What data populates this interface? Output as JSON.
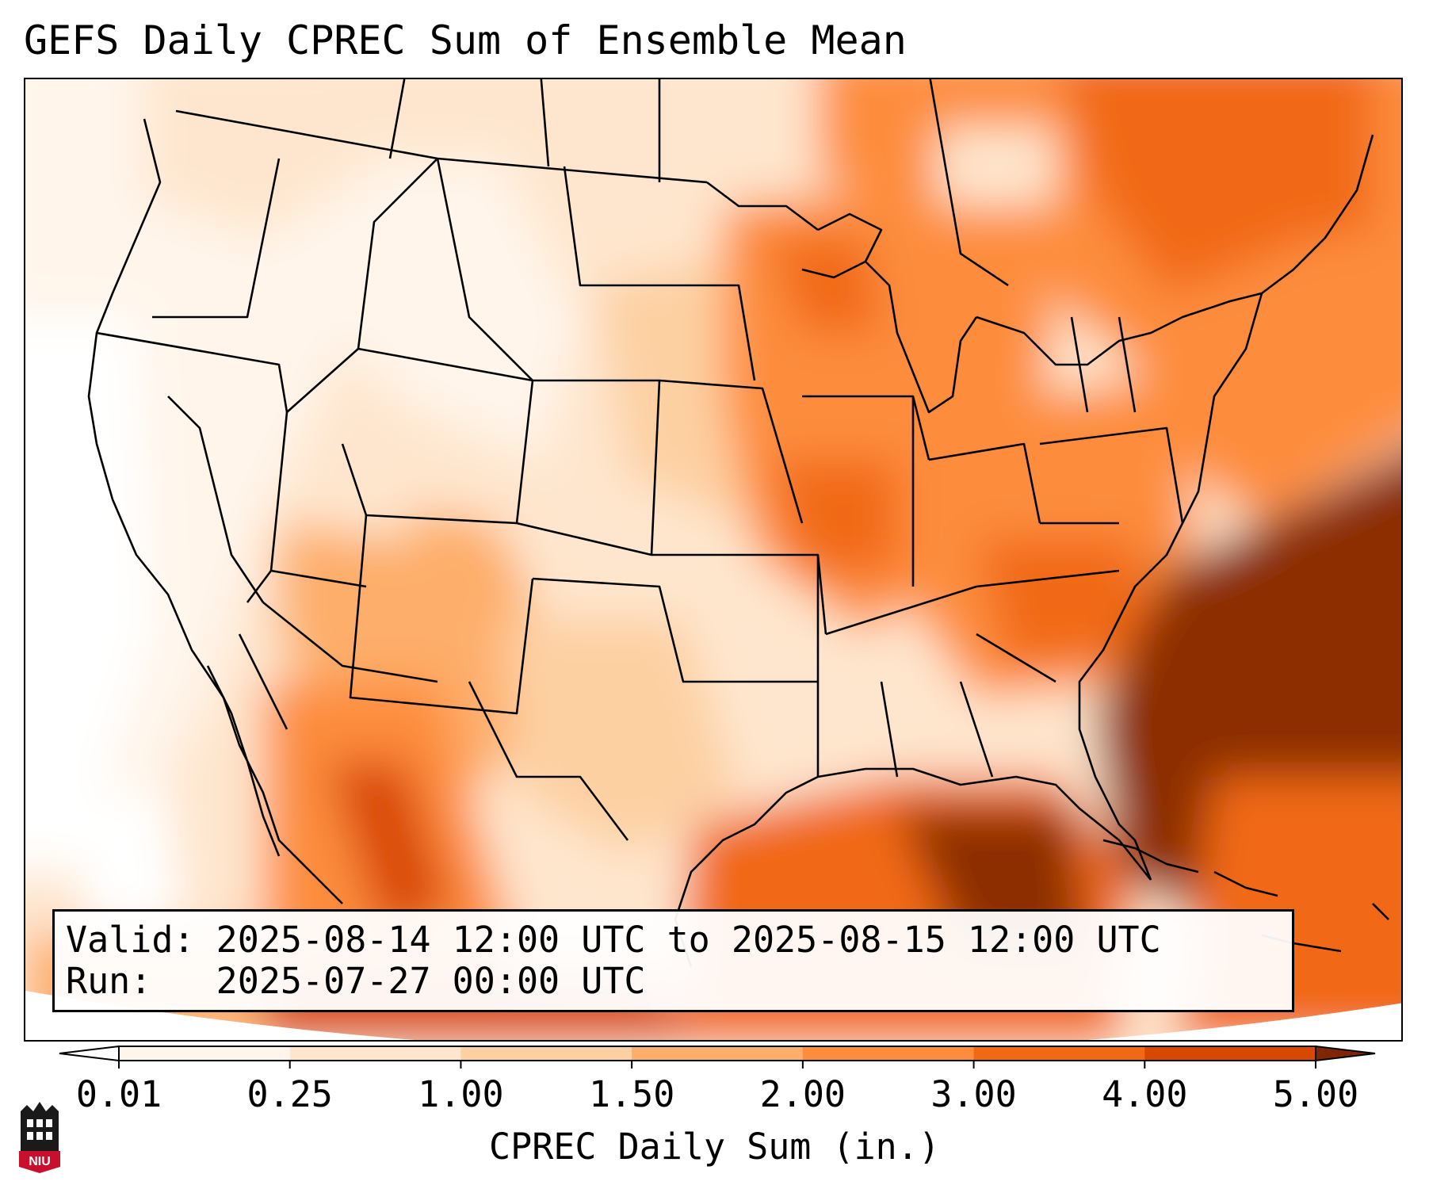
{
  "title": "GEFS Daily CPREC Sum of Ensemble Mean",
  "info": {
    "valid_label": "Valid:",
    "valid_value": "2025-08-14 12:00 UTC to 2025-08-15 12:00 UTC",
    "run_label": "Run:",
    "run_value": "2025-07-27 00:00 UTC"
  },
  "colorbar": {
    "label": "CPREC Daily Sum (in.)",
    "ticks": [
      "0.01",
      "0.25",
      "1.00",
      "1.50",
      "2.00",
      "3.00",
      "4.00",
      "5.00"
    ],
    "colors": [
      "#fff5eb",
      "#fee6ce",
      "#fdd0a2",
      "#fdae6b",
      "#fd8d3c",
      "#f16913",
      "#d94801",
      "#8c2d04"
    ],
    "under_color": "#ffffff",
    "over_color": "#7f2704"
  },
  "logo": {
    "name": "niu-logo",
    "text": "NIU",
    "color": "#c8102e"
  }
}
